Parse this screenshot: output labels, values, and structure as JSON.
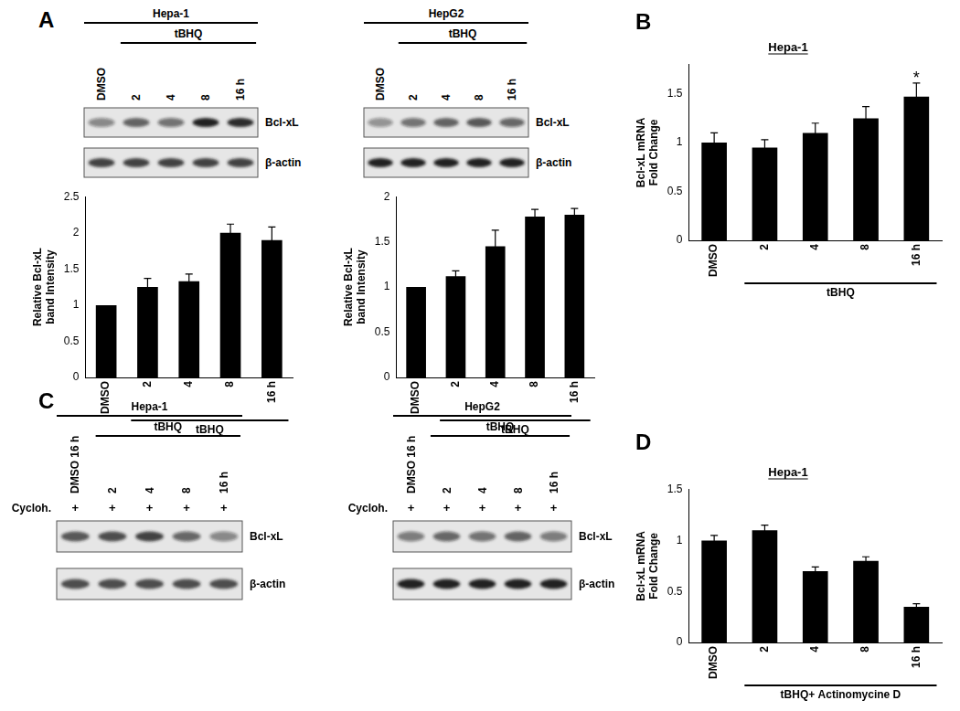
{
  "chart_data": [
    {
      "type": "bar",
      "categories": [
        "DMSO",
        "2",
        "4",
        "8",
        "16 h"
      ],
      "values": [
        1,
        1.25,
        1.33,
        2.0,
        1.9
      ],
      "errors": [
        null,
        0.12,
        0.1,
        0.12,
        0.18
      ],
      "color": "#000000",
      "ylim": [
        0,
        2.5
      ],
      "yticks": [
        0,
        0.5,
        1,
        1.5,
        2,
        2.5
      ],
      "ylabel": "Relative Bcl-xL band Intensity",
      "grid": false,
      "annotations": [
        {
          "text": "tBHQ",
          "span": [
            "2",
            "16 h"
          ]
        }
      ]
    },
    {
      "type": "bar",
      "categories": [
        "DMSO",
        "2",
        "4",
        "8",
        "16 h"
      ],
      "values": [
        1,
        1.12,
        1.45,
        1.78,
        1.8
      ],
      "errors": [
        null,
        0.06,
        0.18,
        0.08,
        0.07
      ],
      "color": "#000000",
      "ylim": [
        0,
        2
      ],
      "yticks": [
        0,
        0.5,
        1,
        1.5,
        2
      ],
      "ylabel": "Relative Bcl-xL band Intensity",
      "grid": false,
      "annotations": [
        {
          "text": "tBHQ",
          "span": [
            "2",
            "16 h"
          ]
        }
      ]
    },
    {
      "type": "bar",
      "title": "Hepa-1",
      "categories": [
        "DMSO",
        "2",
        "4",
        "8",
        "16 h"
      ],
      "values": [
        1,
        0.95,
        1.1,
        1.25,
        1.47
      ],
      "errors": [
        0.1,
        0.08,
        0.1,
        0.12,
        0.14
      ],
      "color": "#000000",
      "ylim": [
        0,
        1.8
      ],
      "yticks": [
        0,
        0.5,
        1,
        1.5
      ],
      "ylabel": "Bcl-xL mRNA Fold Change",
      "grid": false,
      "annotations": [
        {
          "text": "tBHQ",
          "span": [
            "2",
            "16 h"
          ]
        },
        {
          "text": "*",
          "at": "16 h"
        }
      ]
    },
    {
      "type": "bar",
      "title": "Hepa-1",
      "categories": [
        "DMSO",
        "2",
        "4",
        "8",
        "16 h"
      ],
      "values": [
        1,
        1.1,
        0.7,
        0.8,
        0.35
      ],
      "errors": [
        0.05,
        0.05,
        0.04,
        0.04,
        0.03
      ],
      "color": "#000000",
      "ylim": [
        0,
        1.5
      ],
      "yticks": [
        0,
        0.5,
        1,
        1.5
      ],
      "ylabel": "Bcl-xL mRNA Fold Change",
      "grid": false,
      "annotations": [
        {
          "text": "tBHQ+ Actinomycine D",
          "span": [
            "2",
            "16 h"
          ]
        }
      ]
    }
  ],
  "panel_labels": [
    "A",
    "B",
    "C",
    "D"
  ],
  "blots": [
    {
      "cell_line": "Hepa-1",
      "lanes": [
        "DMSO",
        "2",
        "4",
        "8",
        "16 h"
      ],
      "group": {
        "text": "tBHQ",
        "span": [
          "2",
          "16 h"
        ]
      },
      "rows": [
        {
          "label": "Bcl-xL",
          "intensity": [
            0.45,
            0.65,
            0.55,
            0.95,
            0.9
          ]
        },
        {
          "label": "β-actin",
          "intensity": [
            0.8,
            0.8,
            0.8,
            0.8,
            0.8
          ]
        }
      ]
    },
    {
      "cell_line": "HepG2",
      "lanes": [
        "DMSO",
        "2",
        "4",
        "8",
        "16 h"
      ],
      "group": {
        "text": "tBHQ",
        "span": [
          "2",
          "16 h"
        ]
      },
      "rows": [
        {
          "label": "Bcl-xL",
          "intensity": [
            0.4,
            0.55,
            0.65,
            0.7,
            0.6
          ]
        },
        {
          "label": "β-actin",
          "intensity": [
            0.95,
            0.95,
            0.95,
            0.95,
            0.95
          ]
        }
      ]
    },
    {
      "cell_line": "Hepa-1",
      "lanes": [
        "DMSO 16 h",
        "2",
        "4",
        "8",
        "16 h"
      ],
      "group": {
        "text": "tBHQ",
        "span": [
          "2",
          "16 h"
        ]
      },
      "treatment": {
        "label": "Cycloh.",
        "marks": [
          "+",
          "+",
          "+",
          "+",
          "+"
        ]
      },
      "rows": [
        {
          "label": "Bcl-xL",
          "intensity": [
            0.7,
            0.75,
            0.8,
            0.6,
            0.45
          ]
        },
        {
          "label": "β-actin",
          "intensity": [
            0.75,
            0.75,
            0.75,
            0.75,
            0.75
          ]
        }
      ]
    },
    {
      "cell_line": "HepG2",
      "lanes": [
        "DMSO 16 h",
        "2",
        "4",
        "8",
        "16 h"
      ],
      "group": {
        "text": "tBHQ",
        "span": [
          "2",
          "16 h"
        ]
      },
      "treatment": {
        "label": "Cycloh.",
        "marks": [
          "+",
          "+",
          "+",
          "+",
          "+"
        ]
      },
      "rows": [
        {
          "label": "Bcl-xL",
          "intensity": [
            0.5,
            0.6,
            0.55,
            0.65,
            0.5
          ]
        },
        {
          "label": "β-actin",
          "intensity": [
            0.95,
            0.95,
            0.95,
            0.95,
            0.95
          ]
        }
      ]
    }
  ]
}
